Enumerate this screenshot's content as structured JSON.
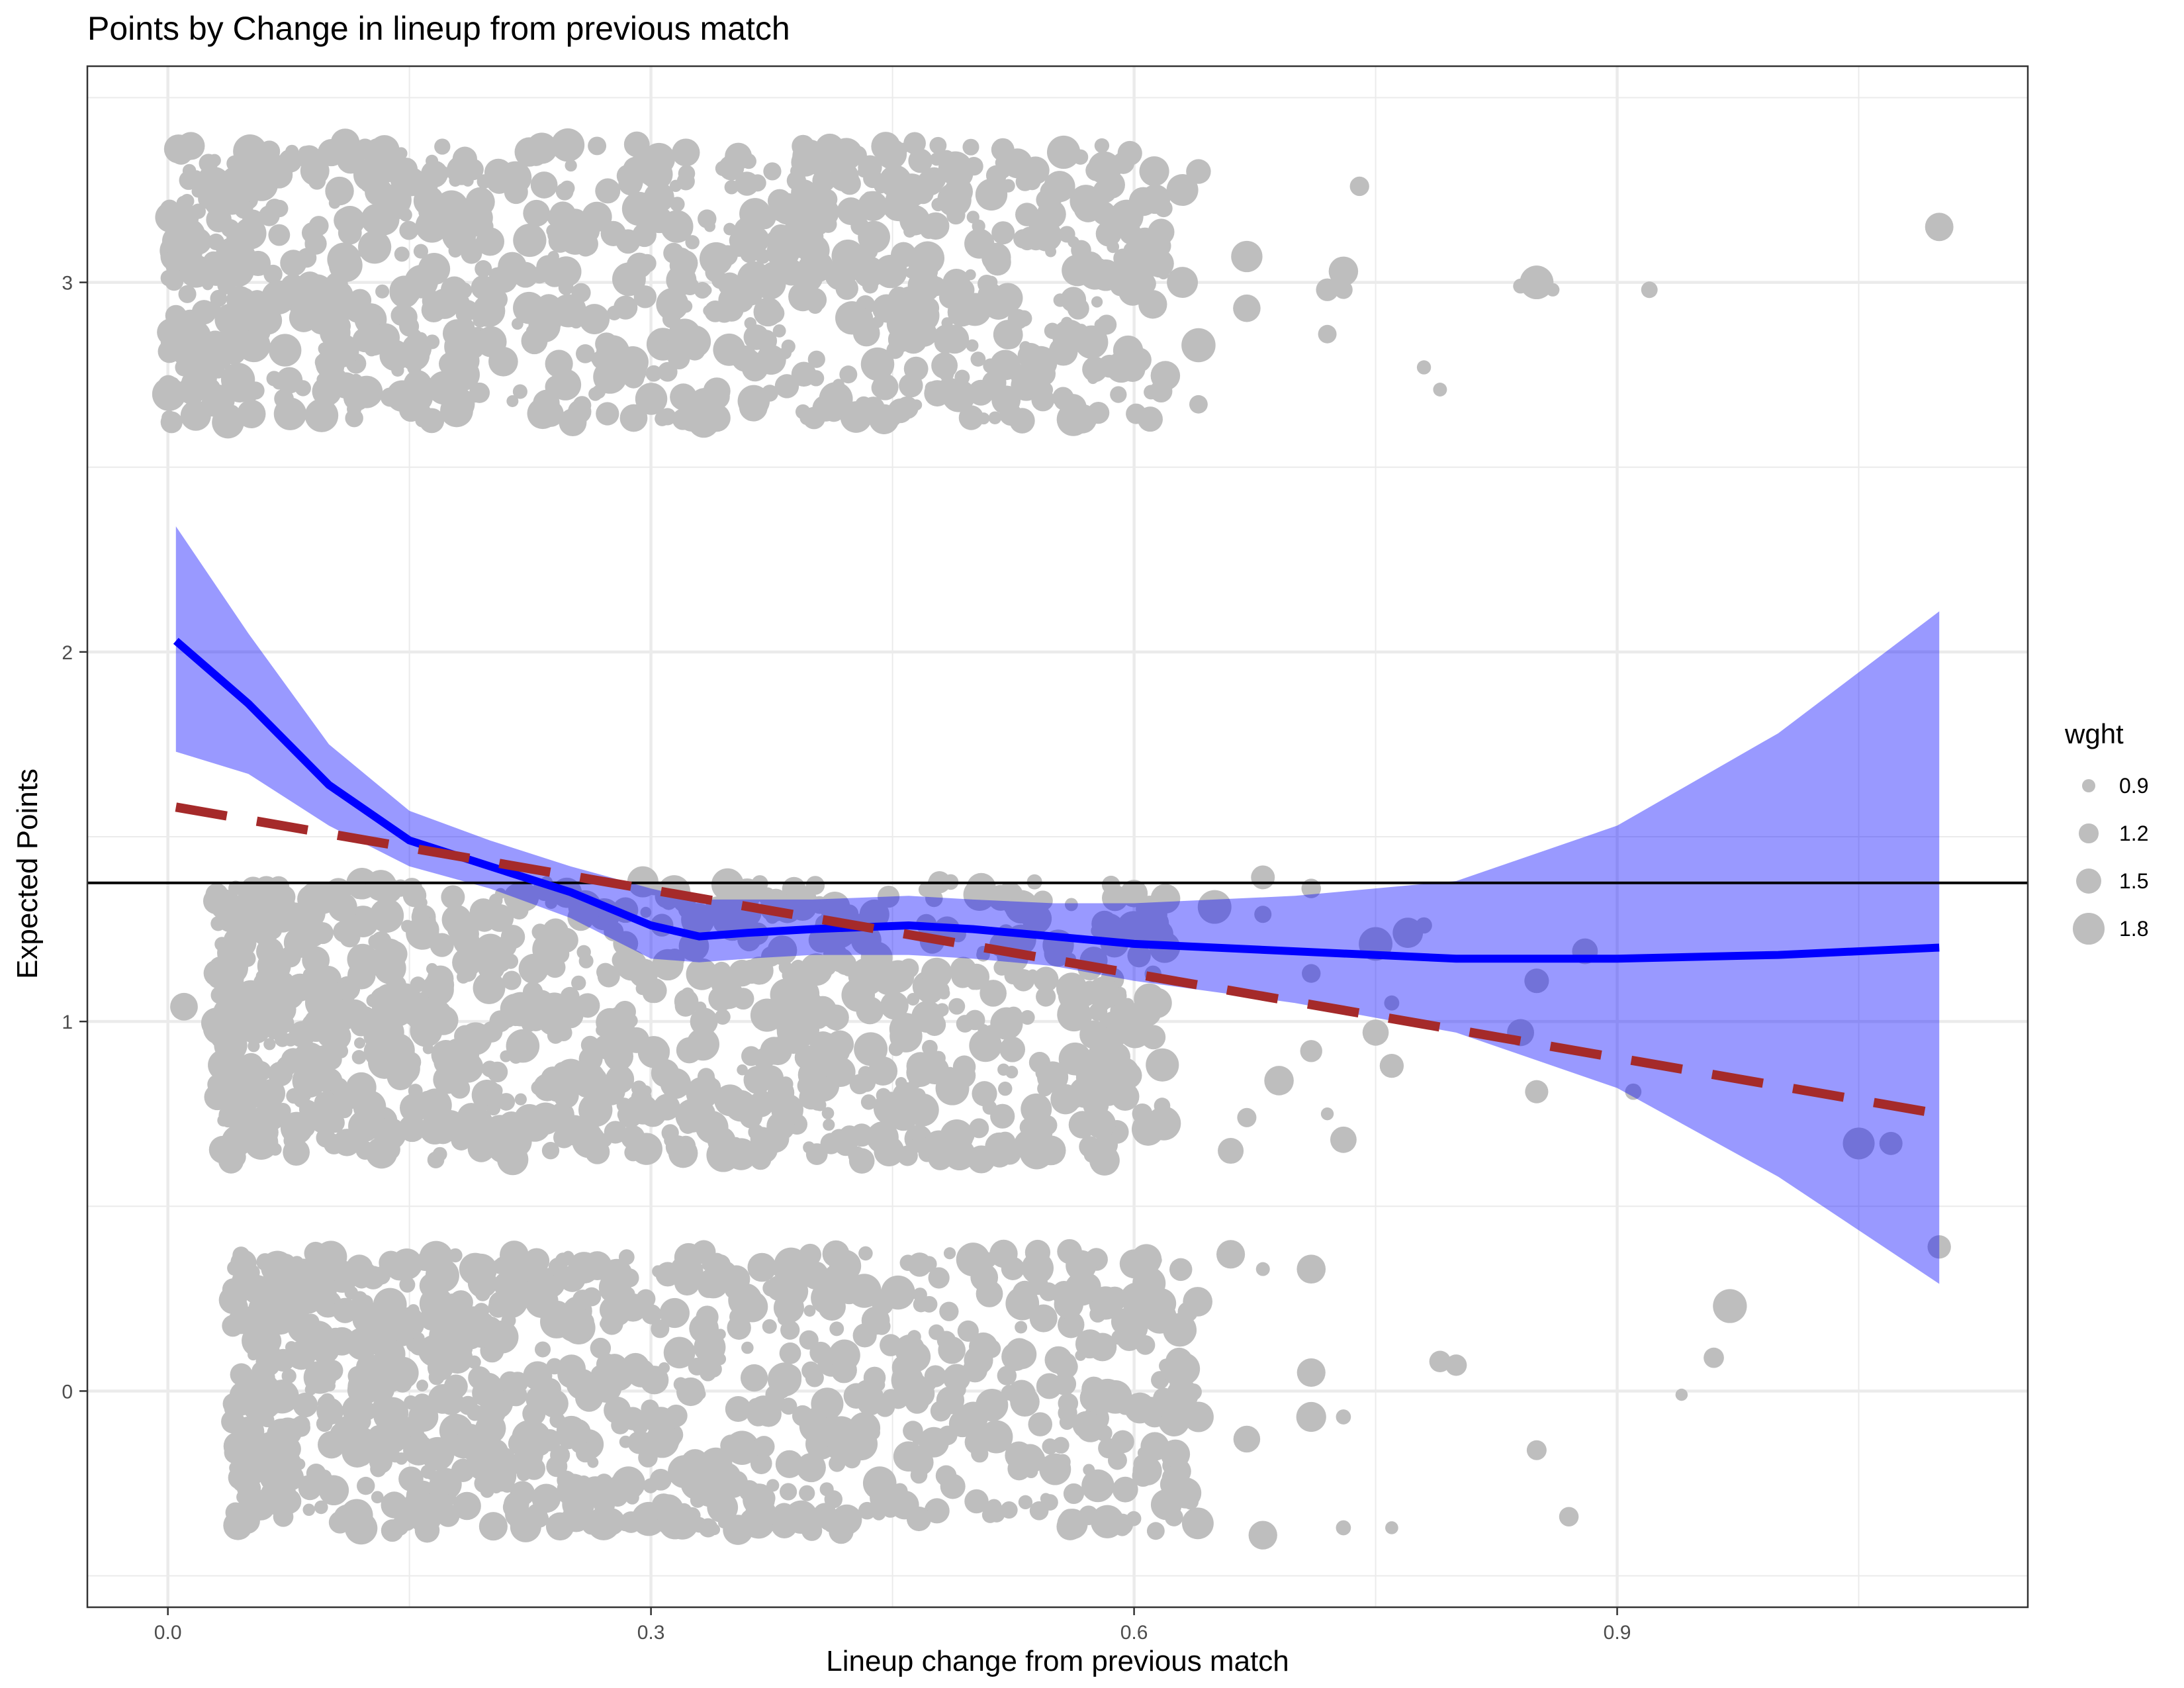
{
  "chart_data": {
    "type": "scatter",
    "title": "Points by Change in lineup from previous match",
    "xlabel": "Lineup change from previous match",
    "ylabel": "Expected Points",
    "xlim": [
      -0.05,
      1.155
    ],
    "ylim": [
      -0.585,
      3.585
    ],
    "x_ticks": [
      0.0,
      0.3,
      0.6,
      0.9
    ],
    "x_tick_labels": [
      "0.0",
      "0.3",
      "0.6",
      "0.9"
    ],
    "y_ticks": [
      0,
      1,
      2,
      3
    ],
    "y_tick_labels": [
      "0",
      "1",
      "2",
      "3"
    ],
    "grid": true,
    "point_color": "#bebebe",
    "point_groups": [
      {
        "points_level": 3,
        "jitter_range": [
          2.62,
          3.38
        ],
        "x_range": [
          0.0,
          0.62
        ],
        "n_points": 900
      },
      {
        "points_level": 1,
        "jitter_range": [
          0.62,
          1.38
        ],
        "x_range": [
          0.03,
          0.62
        ],
        "n_points": 900
      },
      {
        "points_level": 0,
        "jitter_range": [
          -0.38,
          0.38
        ],
        "x_range": [
          0.04,
          0.64
        ],
        "n_points": 900
      }
    ],
    "sparse_points": [
      {
        "x": 0.58,
        "y": 3.37
      },
      {
        "x": 0.6,
        "y": 3.11
      },
      {
        "x": 0.63,
        "y": 3.25
      },
      {
        "x": 0.63,
        "y": 3.0
      },
      {
        "x": 0.64,
        "y": 3.3
      },
      {
        "x": 0.64,
        "y": 2.83
      },
      {
        "x": 0.64,
        "y": 2.67
      },
      {
        "x": 0.61,
        "y": 2.63
      },
      {
        "x": 0.67,
        "y": 3.07
      },
      {
        "x": 0.67,
        "y": 2.93
      },
      {
        "x": 0.72,
        "y": 2.86
      },
      {
        "x": 0.72,
        "y": 2.98
      },
      {
        "x": 0.73,
        "y": 3.03
      },
      {
        "x": 0.73,
        "y": 2.98
      },
      {
        "x": 0.74,
        "y": 3.26
      },
      {
        "x": 0.84,
        "y": 2.99
      },
      {
        "x": 0.85,
        "y": 3.0
      },
      {
        "x": 0.86,
        "y": 2.98
      },
      {
        "x": 0.92,
        "y": 2.98
      },
      {
        "x": 1.1,
        "y": 3.15
      },
      {
        "x": 0.79,
        "y": 2.71
      },
      {
        "x": 0.78,
        "y": 2.77
      },
      {
        "x": 0.01,
        "y": 1.04
      },
      {
        "x": 0.01,
        "y": 2.77
      },
      {
        "x": 0.005,
        "y": 2.91
      },
      {
        "x": 0.65,
        "y": 1.31
      },
      {
        "x": 0.68,
        "y": 1.29
      },
      {
        "x": 0.68,
        "y": 1.39
      },
      {
        "x": 0.71,
        "y": 1.36
      },
      {
        "x": 0.71,
        "y": 1.13
      },
      {
        "x": 0.71,
        "y": 0.92
      },
      {
        "x": 0.72,
        "y": 0.75
      },
      {
        "x": 0.73,
        "y": 0.68
      },
      {
        "x": 0.75,
        "y": 1.21
      },
      {
        "x": 0.75,
        "y": 0.97
      },
      {
        "x": 0.76,
        "y": 1.05
      },
      {
        "x": 0.76,
        "y": 0.88
      },
      {
        "x": 0.77,
        "y": 1.24
      },
      {
        "x": 0.78,
        "y": 1.26
      },
      {
        "x": 0.84,
        "y": 0.97
      },
      {
        "x": 0.85,
        "y": 1.11
      },
      {
        "x": 0.85,
        "y": 0.81
      },
      {
        "x": 0.88,
        "y": 1.19
      },
      {
        "x": 0.91,
        "y": 0.81
      },
      {
        "x": 1.05,
        "y": 0.67
      },
      {
        "x": 1.07,
        "y": 0.67
      },
      {
        "x": 0.66,
        "y": 0.65
      },
      {
        "x": 0.67,
        "y": 0.74
      },
      {
        "x": 0.69,
        "y": 0.84
      },
      {
        "x": 0.66,
        "y": 0.37
      },
      {
        "x": 0.68,
        "y": 0.33
      },
      {
        "x": 0.71,
        "y": 0.33
      },
      {
        "x": 0.71,
        "y": 0.05
      },
      {
        "x": 0.71,
        "y": -0.07
      },
      {
        "x": 0.73,
        "y": -0.07
      },
      {
        "x": 0.76,
        "y": -0.37
      },
      {
        "x": 0.79,
        "y": 0.08
      },
      {
        "x": 0.8,
        "y": 0.07
      },
      {
        "x": 0.85,
        "y": -0.16
      },
      {
        "x": 0.87,
        "y": -0.34
      },
      {
        "x": 0.94,
        "y": -0.01
      },
      {
        "x": 0.96,
        "y": 0.09
      },
      {
        "x": 0.97,
        "y": 0.23
      },
      {
        "x": 1.1,
        "y": 0.39
      },
      {
        "x": 0.67,
        "y": -0.13
      },
      {
        "x": 0.68,
        "y": -0.39
      },
      {
        "x": 0.73,
        "y": -0.37
      },
      {
        "x": 0.63,
        "y": -0.01
      },
      {
        "x": 0.64,
        "y": -0.07
      }
    ],
    "series": [
      {
        "type": "line",
        "style": "solid",
        "color": "#0000ff",
        "x": [
          0.005,
          0.05,
          0.1,
          0.15,
          0.2,
          0.25,
          0.3,
          0.33,
          0.36,
          0.4,
          0.46,
          0.5,
          0.55,
          0.6,
          0.7,
          0.8,
          0.9,
          1.0,
          1.1
        ],
        "y": [
          2.03,
          1.86,
          1.64,
          1.49,
          1.42,
          1.35,
          1.26,
          1.23,
          1.24,
          1.25,
          1.26,
          1.25,
          1.23,
          1.21,
          1.19,
          1.17,
          1.17,
          1.18,
          1.2
        ],
        "ci_upper": [
          2.34,
          2.05,
          1.75,
          1.57,
          1.49,
          1.42,
          1.36,
          1.33,
          1.33,
          1.33,
          1.34,
          1.33,
          1.32,
          1.32,
          1.34,
          1.38,
          1.53,
          1.78,
          2.11
        ],
        "ci_lower": [
          1.73,
          1.67,
          1.53,
          1.42,
          1.36,
          1.28,
          1.17,
          1.16,
          1.17,
          1.18,
          1.18,
          1.17,
          1.15,
          1.11,
          1.05,
          0.97,
          0.82,
          0.58,
          0.29
        ],
        "ci_color": "#0000ff",
        "ci_opacity": 0.4
      },
      {
        "type": "line",
        "style": "dashed",
        "color": "#a52a2a",
        "x": [
          0.005,
          1.1
        ],
        "y": [
          1.58,
          0.75
        ]
      },
      {
        "type": "hline",
        "color": "#000000",
        "y": 1.375
      }
    ],
    "legend": {
      "title": "wght",
      "position": "right",
      "entries": [
        {
          "label": "0.9",
          "value": 0.9
        },
        {
          "label": "1.2",
          "value": 1.2
        },
        {
          "label": "1.5",
          "value": 1.5
        },
        {
          "label": "1.8",
          "value": 1.8
        }
      ]
    }
  }
}
